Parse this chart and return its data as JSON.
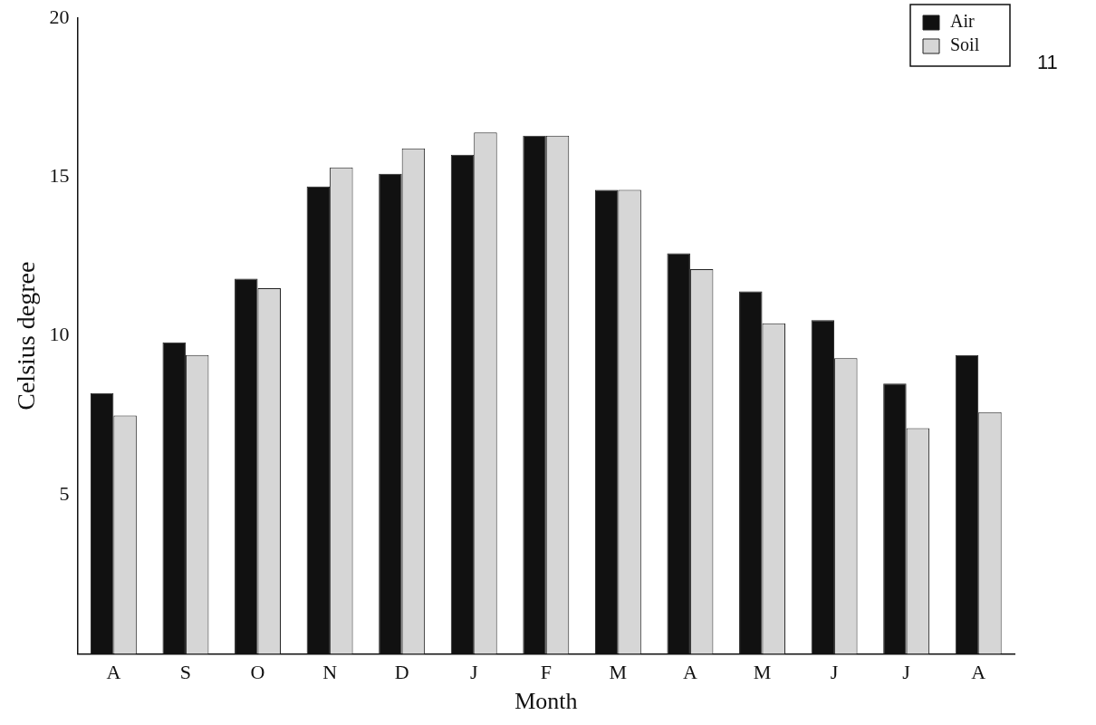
{
  "chart_data": {
    "type": "bar",
    "xlabel": "Month",
    "ylabel": "Celsius degree",
    "categories": [
      "A",
      "S",
      "O",
      "N",
      "D",
      "J",
      "F",
      "M",
      "A",
      "M",
      "J",
      "J",
      "A"
    ],
    "series": [
      {
        "name": "Air",
        "color": "#111111",
        "values": [
          8.2,
          9.8,
          11.8,
          14.7,
          15.1,
          15.7,
          16.3,
          14.6,
          12.6,
          11.4,
          10.5,
          8.5,
          9.4
        ]
      },
      {
        "name": "Soil",
        "color": "#d6d6d6",
        "values": [
          7.5,
          9.4,
          11.5,
          15.3,
          15.9,
          16.4,
          16.3,
          14.6,
          12.1,
          10.4,
          9.3,
          7.1,
          7.6
        ]
      }
    ],
    "ylim": [
      0,
      20
    ],
    "yticks": [
      5,
      10,
      15,
      20
    ],
    "grid": false,
    "legend": "top right",
    "annotations": [
      "11"
    ]
  }
}
